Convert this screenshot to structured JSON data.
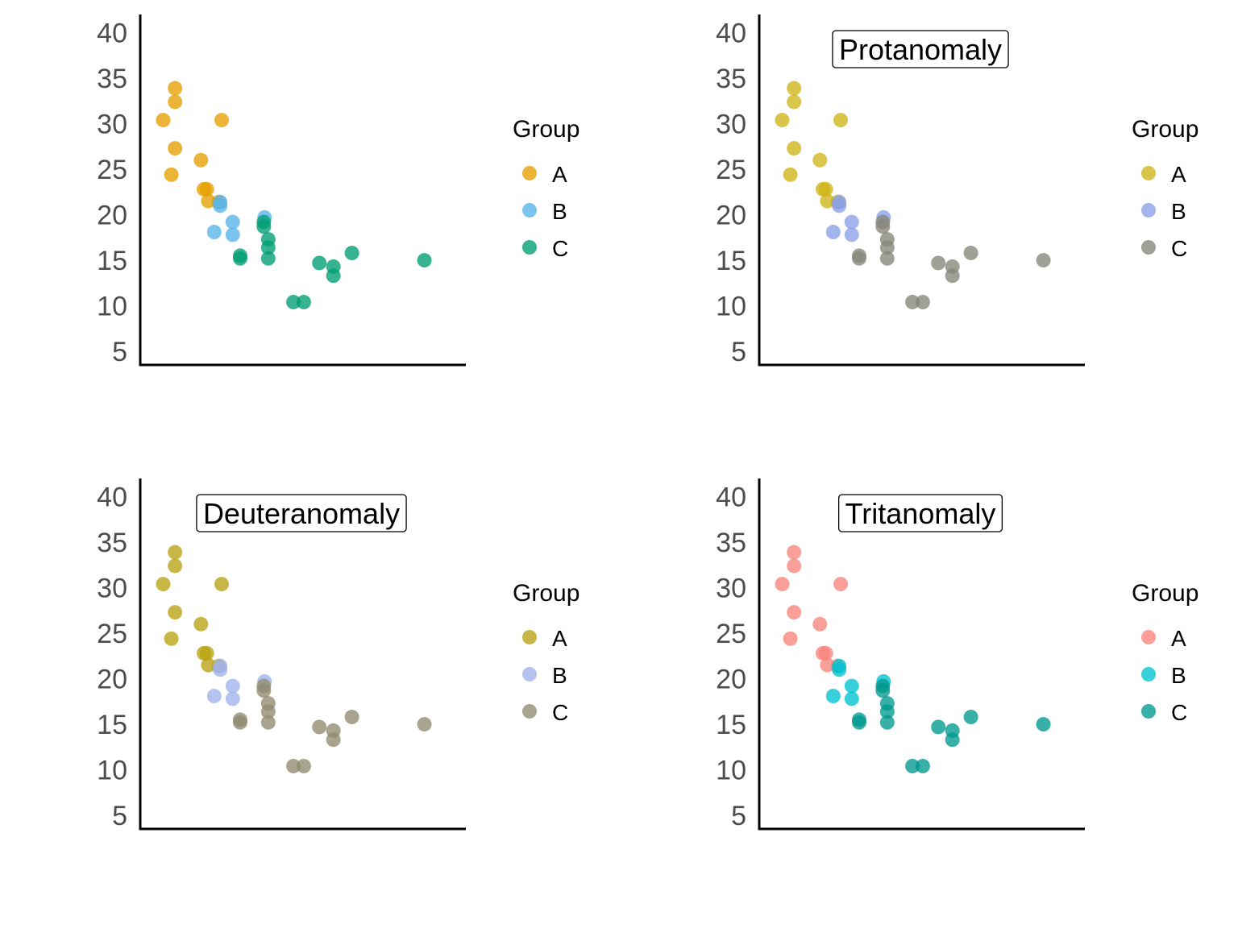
{
  "chart_data": {
    "type": "scatter",
    "ylim": [
      3.5,
      42
    ],
    "xlim": [
      1.2,
      5.6
    ],
    "yticks": [
      5,
      10,
      15,
      20,
      25,
      30,
      35,
      40
    ],
    "grid": false,
    "legend_position": "right",
    "legend_title": "Group",
    "groups": [
      "A",
      "B",
      "C"
    ],
    "points": [
      {
        "x": 1.51,
        "y": 30.4,
        "group": "A"
      },
      {
        "x": 1.62,
        "y": 24.4,
        "group": "A"
      },
      {
        "x": 1.67,
        "y": 27.3,
        "group": "A"
      },
      {
        "x": 1.67,
        "y": 32.4,
        "group": "A"
      },
      {
        "x": 1.67,
        "y": 33.9,
        "group": "A"
      },
      {
        "x": 2.02,
        "y": 26.0,
        "group": "A"
      },
      {
        "x": 2.06,
        "y": 22.8,
        "group": "A"
      },
      {
        "x": 2.1,
        "y": 22.8,
        "group": "A"
      },
      {
        "x": 2.12,
        "y": 21.5,
        "group": "A"
      },
      {
        "x": 2.3,
        "y": 30.4,
        "group": "A"
      },
      {
        "x": 2.26,
        "y": 21.4,
        "group": "A"
      },
      {
        "x": 2.2,
        "y": 18.1,
        "group": "B"
      },
      {
        "x": 2.28,
        "y": 21.0,
        "group": "B"
      },
      {
        "x": 2.28,
        "y": 21.4,
        "group": "B"
      },
      {
        "x": 2.45,
        "y": 19.2,
        "group": "B"
      },
      {
        "x": 2.45,
        "y": 17.8,
        "group": "B"
      },
      {
        "x": 2.88,
        "y": 19.7,
        "group": "B"
      },
      {
        "x": 2.87,
        "y": 18.7,
        "group": "C"
      },
      {
        "x": 2.87,
        "y": 19.2,
        "group": "C"
      },
      {
        "x": 2.93,
        "y": 17.3,
        "group": "C"
      },
      {
        "x": 2.93,
        "y": 16.4,
        "group": "C"
      },
      {
        "x": 2.93,
        "y": 15.2,
        "group": "C"
      },
      {
        "x": 2.55,
        "y": 15.5,
        "group": "C"
      },
      {
        "x": 2.55,
        "y": 15.2,
        "group": "C"
      },
      {
        "x": 3.27,
        "y": 10.4,
        "group": "C"
      },
      {
        "x": 3.41,
        "y": 10.4,
        "group": "C"
      },
      {
        "x": 3.62,
        "y": 14.7,
        "group": "C"
      },
      {
        "x": 3.81,
        "y": 14.3,
        "group": "C"
      },
      {
        "x": 3.81,
        "y": 13.3,
        "group": "C"
      },
      {
        "x": 4.06,
        "y": 15.8,
        "group": "C"
      },
      {
        "x": 5.04,
        "y": 15.0,
        "group": "C"
      }
    ],
    "panels": [
      {
        "title": "",
        "colors": {
          "A": "#E69F00",
          "B": "#56B4E9",
          "C": "#009E73"
        }
      },
      {
        "title": "Protanomaly",
        "colors": {
          "A": "#CDB516",
          "B": "#8B9FE8",
          "C": "#86857A"
        }
      },
      {
        "title": "Deuteranomaly",
        "colors": {
          "A": "#B9A312",
          "B": "#9FB2EA",
          "C": "#8F8A6F"
        }
      },
      {
        "title": "Tritanomaly",
        "colors": {
          "A": "#F9847B",
          "B": "#00C3CF",
          "C": "#00998E"
        }
      }
    ]
  }
}
